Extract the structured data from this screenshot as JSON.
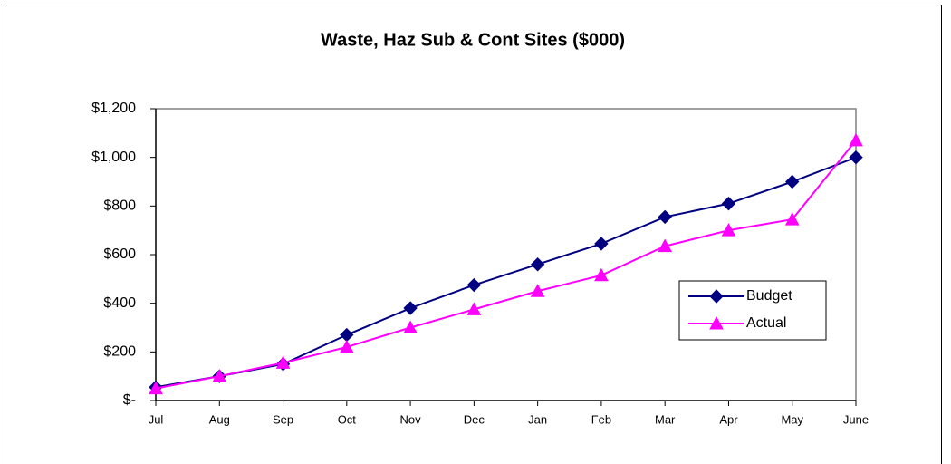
{
  "chart_data": {
    "type": "line",
    "title": "Waste, Haz Sub & Cont Sites ($000)",
    "categories": [
      "Jul",
      "Aug",
      "Sep",
      "Oct",
      "Nov",
      "Dec",
      "Jan",
      "Feb",
      "Mar",
      "Apr",
      "May",
      "June"
    ],
    "series": [
      {
        "name": "Budget",
        "color": "#000080",
        "marker": "diamond",
        "values": [
          55,
          100,
          150,
          270,
          380,
          475,
          560,
          645,
          755,
          810,
          900,
          1000
        ]
      },
      {
        "name": "Actual",
        "color": "#ff00ff",
        "marker": "triangle",
        "values": [
          50,
          100,
          155,
          220,
          300,
          375,
          450,
          515,
          635,
          700,
          745,
          1070
        ]
      }
    ],
    "ylim": [
      0,
      1200
    ],
    "yticks": [
      {
        "value": 0,
        "label": "$-"
      },
      {
        "value": 200,
        "label": "$200"
      },
      {
        "value": 400,
        "label": "$400"
      },
      {
        "value": 600,
        "label": "$600"
      },
      {
        "value": 800,
        "label": "$800"
      },
      {
        "value": 1000,
        "label": "$1,000"
      },
      {
        "value": 1200,
        "label": "$1,200"
      }
    ],
    "grid": false,
    "legend": "right"
  }
}
